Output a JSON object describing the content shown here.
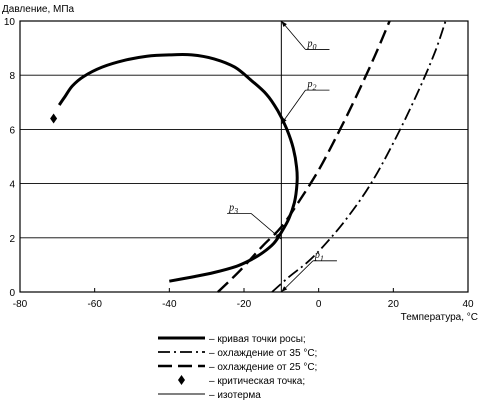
{
  "chart_data": {
    "type": "line",
    "xlabel": "Температура, °С",
    "ylabel": "Давление, МПа",
    "xlim": [
      -80,
      40
    ],
    "ylim": [
      0,
      10
    ],
    "xticks": [
      -80,
      -60,
      -40,
      -20,
      0,
      20,
      40
    ],
    "yticks": [
      0,
      2,
      4,
      6,
      8,
      10
    ],
    "grid": "horizontal",
    "series": [
      {
        "name": "– кривая точки росы;",
        "style": "solid",
        "points": [
          [
            -40,
            0.4
          ],
          [
            -34,
            0.55
          ],
          [
            -28,
            0.72
          ],
          [
            -22,
            0.95
          ],
          [
            -18,
            1.2
          ],
          [
            -15,
            1.45
          ],
          [
            -12,
            1.8
          ],
          [
            -10,
            2.2
          ],
          [
            -8,
            2.7
          ],
          [
            -6.5,
            3.3
          ],
          [
            -5.8,
            4.0
          ],
          [
            -5.9,
            4.6
          ],
          [
            -6.8,
            5.3
          ],
          [
            -8.5,
            6.0
          ],
          [
            -11,
            6.7
          ],
          [
            -14,
            7.3
          ],
          [
            -18,
            7.8
          ],
          [
            -22.5,
            8.3
          ],
          [
            -28,
            8.6
          ],
          [
            -34,
            8.75
          ],
          [
            -40,
            8.75
          ],
          [
            -46,
            8.7
          ],
          [
            -52,
            8.55
          ],
          [
            -58,
            8.3
          ],
          [
            -63,
            7.95
          ],
          [
            -66,
            7.6
          ],
          [
            -68,
            7.2
          ],
          [
            -69.5,
            6.9
          ]
        ]
      },
      {
        "name": "– охлаждение от 35 °С;",
        "style": "dashdot",
        "points": [
          [
            -12.5,
            0
          ],
          [
            -8,
            0.55
          ],
          [
            -3,
            1.1
          ],
          [
            2,
            1.8
          ],
          [
            8,
            2.8
          ],
          [
            14,
            4.0
          ],
          [
            20,
            5.5
          ],
          [
            26,
            7.2
          ],
          [
            31,
            8.8
          ],
          [
            34,
            10
          ]
        ]
      },
      {
        "name": "– охлаждение от 25 °С;",
        "style": "dashed",
        "points": [
          [
            -27,
            0
          ],
          [
            -21,
            0.8
          ],
          [
            -15,
            1.7
          ],
          [
            -10,
            2.4
          ],
          [
            -5,
            3.4
          ],
          [
            0,
            4.5
          ],
          [
            5,
            5.8
          ],
          [
            10,
            7.2
          ],
          [
            15,
            8.7
          ],
          [
            19,
            10
          ]
        ]
      }
    ],
    "isotherm": {
      "name": "– изотерма",
      "x": -10
    },
    "critical_point": {
      "name": "– критическая точка;",
      "x": -71,
      "y": 6.4
    },
    "annotations": [
      {
        "text": "p0",
        "at": [
          -10,
          10
        ],
        "label_pos": [
          -3,
          8.95
        ]
      },
      {
        "text": "p2",
        "at": [
          -10,
          6.2
        ],
        "label_pos": [
          -3,
          7.45
        ]
      },
      {
        "text": "p3",
        "at": [
          -10,
          1.95
        ],
        "label_pos": [
          -24,
          2.9
        ]
      },
      {
        "text": "p1",
        "at": [
          -10,
          0
        ],
        "label_pos": [
          -1,
          1.15
        ]
      }
    ]
  }
}
